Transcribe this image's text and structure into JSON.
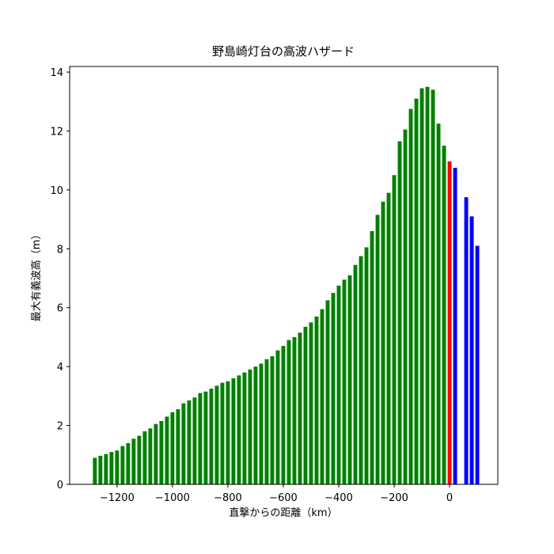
{
  "chart_data": {
    "type": "bar",
    "title": "野島崎灯台の高波ハザード",
    "x_label": "直撃からの距離（km）",
    "y_label": "最大有義波高（m）",
    "series": [
      {
        "color": "green",
        "x": [
          -1280,
          -1260,
          -1240,
          -1220,
          -1200,
          -1180,
          -1160,
          -1140,
          -1120,
          -1100,
          -1080,
          -1060,
          -1040,
          -1020,
          -1000,
          -980,
          -960,
          -940,
          -920,
          -900,
          -880,
          -860,
          -840,
          -820,
          -800,
          -780,
          -760,
          -740,
          -720,
          -700,
          -680,
          -660,
          -640,
          -620,
          -600,
          -580,
          -560,
          -540,
          -520,
          -500,
          -480,
          -460,
          -440,
          -420,
          -400,
          -380,
          -360,
          -340,
          -320,
          -300,
          -280,
          -260,
          -240,
          -220,
          -200,
          -180,
          -160,
          -140,
          -120,
          -100,
          -80,
          -60,
          -40,
          -20
        ],
        "values": [
          0.9,
          0.97,
          1.03,
          1.1,
          1.15,
          1.3,
          1.4,
          1.55,
          1.65,
          1.8,
          1.9,
          2.05,
          2.15,
          2.3,
          2.45,
          2.55,
          2.75,
          2.85,
          2.95,
          3.1,
          3.15,
          3.25,
          3.35,
          3.45,
          3.5,
          3.6,
          3.7,
          3.8,
          3.9,
          4.0,
          4.1,
          4.25,
          4.35,
          4.55,
          4.7,
          4.9,
          5.0,
          5.15,
          5.35,
          5.5,
          5.7,
          5.95,
          6.25,
          6.5,
          6.75,
          6.95,
          7.1,
          7.45,
          7.75,
          8.05,
          8.6,
          9.15,
          9.6,
          9.9,
          10.5,
          11.65,
          12.05,
          12.75,
          13.1,
          13.45,
          13.5,
          13.4,
          12.25,
          11.5
        ]
      },
      {
        "color": "red",
        "x": [
          0
        ],
        "values": [
          10.97
        ]
      },
      {
        "color": "blue",
        "x": [
          20,
          60,
          80,
          100
        ],
        "values": [
          10.75,
          9.75,
          9.1,
          8.1
        ]
      }
    ],
    "xlim": [
      -1371,
      174
    ],
    "xticks": [
      {
        "value": -1200,
        "label": "−1200"
      },
      {
        "value": -1000,
        "label": "−1000"
      },
      {
        "value": -800,
        "label": "−800"
      },
      {
        "value": -600,
        "label": "−600"
      },
      {
        "value": -400,
        "label": "−400"
      },
      {
        "value": -200,
        "label": "−200"
      },
      0
    ],
    "ylim": [
      0,
      14.19
    ],
    "yticks": [
      0,
      2,
      4,
      6,
      8,
      10,
      12,
      14
    ]
  }
}
